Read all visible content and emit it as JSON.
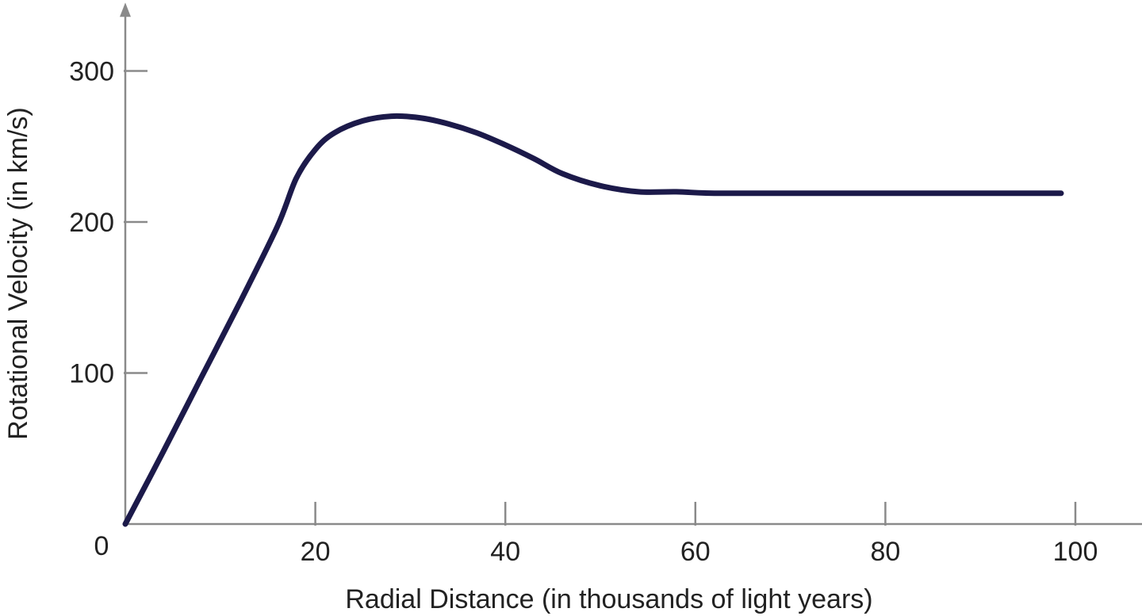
{
  "chart_data": {
    "type": "line",
    "title": "",
    "xlabel": "Radial Distance (in thousands of light years)",
    "ylabel": "Rotational Velocity (in km/s)",
    "xlim": [
      0,
      110
    ],
    "ylim": [
      0,
      340
    ],
    "x_ticks": [
      20,
      40,
      60,
      80,
      100
    ],
    "y_ticks": [
      100,
      200,
      300
    ],
    "origin_label": "0",
    "grid": false,
    "legend": "none",
    "line_color": "#1c1a4a",
    "axis_color": "#8a8a8a",
    "series": [
      {
        "name": "",
        "x": [
          0,
          4,
          8,
          12,
          16,
          18,
          20,
          22,
          25,
          28,
          31,
          34,
          37,
          40,
          43,
          46,
          50,
          54,
          58,
          62,
          70,
          80,
          90,
          98.5
        ],
        "y": [
          0,
          48,
          97,
          146,
          197,
          229,
          248,
          259,
          267,
          270,
          269,
          265,
          259,
          251,
          242,
          232,
          224,
          220,
          220,
          219,
          219,
          219,
          219,
          219
        ]
      }
    ]
  }
}
